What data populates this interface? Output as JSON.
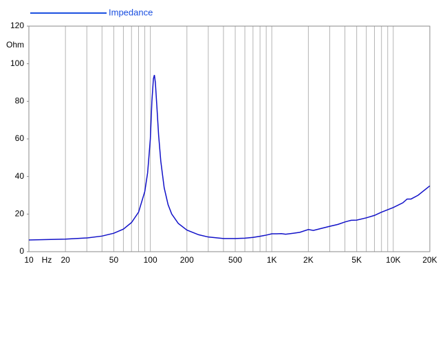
{
  "chart_data": {
    "type": "line",
    "x_label": "Hz",
    "y_label": "Ohm",
    "x": [
      10,
      20,
      30,
      40,
      50,
      60,
      70,
      80,
      90,
      95,
      100,
      103,
      106,
      108,
      110,
      113,
      117,
      122,
      130,
      140,
      150,
      170,
      200,
      250,
      300,
      400,
      500,
      600,
      700,
      800,
      900,
      1000,
      1100,
      1200,
      1300,
      1500,
      1700,
      2000,
      2200,
      2500,
      3000,
      3500,
      4000,
      4500,
      5000,
      6000,
      7000,
      8000,
      10000,
      12000,
      13000,
      14000,
      16000,
      20000
    ],
    "series": [
      {
        "name": "Impedance",
        "color": "#1010c8",
        "values": [
          6.2,
          6.7,
          7.3,
          8.3,
          9.8,
          12,
          15.5,
          21,
          32,
          42,
          60,
          80,
          92,
          94,
          90,
          78,
          62,
          48,
          34,
          25,
          20,
          15,
          11.5,
          9,
          7.8,
          7,
          7,
          7.2,
          7.6,
          8.2,
          8.8,
          9.5,
          9.5,
          9.6,
          9.3,
          9.8,
          10.3,
          11.8,
          11.3,
          12.2,
          13.5,
          14.5,
          15.8,
          16.7,
          16.8,
          18,
          19.3,
          21,
          23.5,
          26,
          28,
          28,
          30,
          35
        ]
      }
    ],
    "legend_color": "#1a4fe0",
    "xscale": "log",
    "xlim": [
      10,
      20000
    ],
    "xticks": [
      10,
      20,
      50,
      100,
      200,
      500,
      {
        "value": 1000,
        "label": "1K"
      },
      {
        "value": 2000,
        "label": "2K"
      },
      {
        "value": 5000,
        "label": "5K"
      },
      {
        "value": 10000,
        "label": "10K"
      },
      {
        "value": 20000,
        "label": "20K"
      }
    ],
    "x_minor_ticks": [
      30,
      40,
      60,
      70,
      80,
      90,
      300,
      400,
      600,
      700,
      800,
      900,
      3000,
      4000,
      6000,
      7000,
      8000,
      9000
    ],
    "ylim": [
      0,
      120
    ],
    "yticks": [
      0,
      20,
      40,
      60,
      80,
      100,
      120
    ],
    "grid": true
  }
}
